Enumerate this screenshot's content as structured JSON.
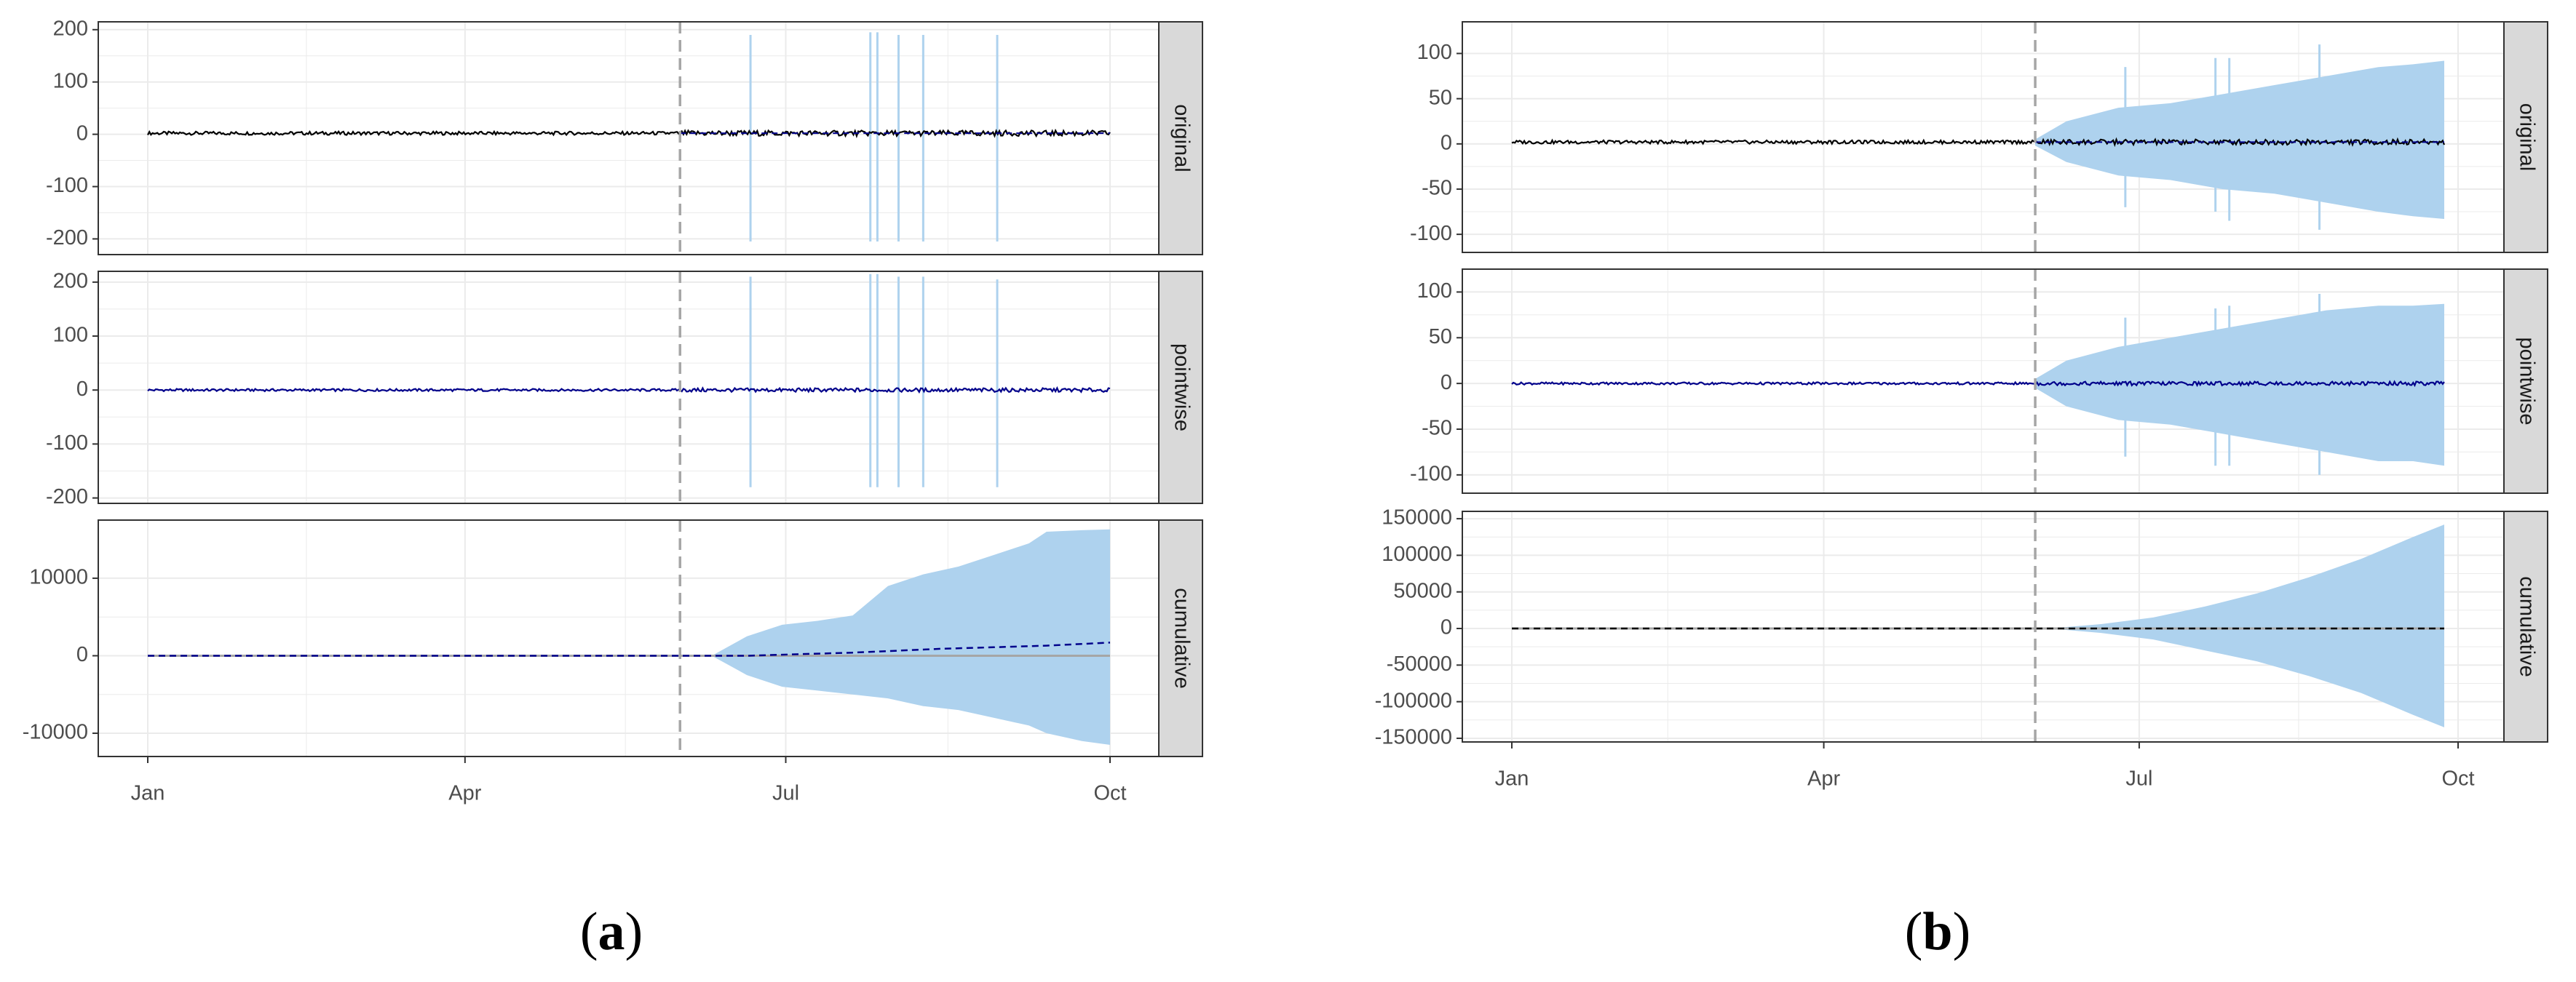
{
  "colors": {
    "interval": "#aed2ee",
    "observed": "#000000",
    "predicted": "#00008b",
    "intervention_line": "#a6a6a6",
    "zero_line": "#a6a6a6",
    "grid": "#ebebeb",
    "strip_fill": "#d9d9d9",
    "panel_border": "#333333"
  },
  "x_axis": {
    "ticks": [
      {
        "label": "Jan",
        "day": 0
      },
      {
        "label": "Apr",
        "day": 90
      },
      {
        "label": "Jul",
        "day": 181
      },
      {
        "label": "Oct",
        "day": 273
      }
    ],
    "xlim_days": [
      0,
      273
    ],
    "intervention_day": 151
  },
  "chart_data": [
    {
      "type": "line",
      "figure_label": {
        "open": "(",
        "letter": "a",
        "close": ")"
      },
      "facets": [
        {
          "strip": "original",
          "ylim": [
            -230,
            215
          ],
          "yticks": [
            200,
            100,
            0,
            -100,
            -200
          ],
          "ytick_labels": [
            "200",
            "100",
            "0",
            "-100",
            "-200"
          ],
          "series": {
            "observed_level": 2,
            "prediction_level": 2
          },
          "interval_spikes": [
            {
              "day": 171,
              "lo": -205,
              "hi": 190
            },
            {
              "day": 205,
              "lo": -205,
              "hi": 195
            },
            {
              "day": 207,
              "lo": -205,
              "hi": 195
            },
            {
              "day": 213,
              "lo": -205,
              "hi": 190
            },
            {
              "day": 220,
              "lo": -205,
              "hi": 190
            },
            {
              "day": 241,
              "lo": -205,
              "hi": 190
            }
          ],
          "interval_band": []
        },
        {
          "strip": "pointwise",
          "ylim": [
            -210,
            220
          ],
          "yticks": [
            200,
            100,
            0,
            -100,
            -200
          ],
          "ytick_labels": [
            "200",
            "100",
            "0",
            "-100",
            "-200"
          ],
          "series": {
            "observed_level": 0,
            "prediction_level": 0
          },
          "interval_spikes": [
            {
              "day": 171,
              "lo": -180,
              "hi": 210
            },
            {
              "day": 205,
              "lo": -180,
              "hi": 215
            },
            {
              "day": 207,
              "lo": -180,
              "hi": 215
            },
            {
              "day": 213,
              "lo": -180,
              "hi": 210
            },
            {
              "day": 220,
              "lo": -180,
              "hi": 210
            },
            {
              "day": 241,
              "lo": -180,
              "hi": 205
            }
          ],
          "interval_band": []
        },
        {
          "strip": "cumulative",
          "ylim": [
            -13000,
            17500
          ],
          "yticks": [
            10000,
            0,
            -10000
          ],
          "ytick_labels": [
            "10000",
            "0",
            "-10000"
          ],
          "series": {
            "predicted_curve": [
              [
                0,
                0
              ],
              [
                151,
                0
              ],
              [
                170,
                0
              ],
              [
                185,
                200
              ],
              [
                200,
                400
              ],
              [
                210,
                600
              ],
              [
                225,
                900
              ],
              [
                240,
                1100
              ],
              [
                255,
                1300
              ],
              [
                273,
                1700
              ]
            ]
          },
          "interval_band": [
            [
              160,
              0,
              0
            ],
            [
              170,
              2500,
              -2500
            ],
            [
              180,
              4000,
              -4000
            ],
            [
              190,
              4500,
              -4500
            ],
            [
              200,
              5200,
              -5000
            ],
            [
              210,
              9000,
              -5500
            ],
            [
              220,
              10500,
              -6500
            ],
            [
              230,
              11500,
              -7000
            ],
            [
              240,
              13000,
              -8000
            ],
            [
              250,
              14500,
              -9000
            ],
            [
              255,
              16000,
              -10000
            ],
            [
              265,
              16200,
              -11000
            ],
            [
              273,
              16300,
              -11500
            ]
          ],
          "interval_spikes": []
        }
      ]
    },
    {
      "type": "line",
      "figure_label": {
        "open": "(",
        "letter": "b",
        "close": ")"
      },
      "facets": [
        {
          "strip": "original",
          "ylim": [
            -120,
            135
          ],
          "yticks": [
            100,
            50,
            0,
            -50,
            -100
          ],
          "ytick_labels": [
            "100",
            "50",
            "0",
            "-50",
            "-100"
          ],
          "series": {
            "observed_level": 2,
            "prediction_level": 2
          },
          "interval_band": [
            [
              151,
              5,
              -2
            ],
            [
              160,
              25,
              -20
            ],
            [
              175,
              40,
              -35
            ],
            [
              190,
              45,
              -40
            ],
            [
              205,
              55,
              -50
            ],
            [
              220,
              65,
              -55
            ],
            [
              235,
              75,
              -65
            ],
            [
              250,
              85,
              -75
            ],
            [
              260,
              88,
              -80
            ],
            [
              269,
              92,
              -83
            ]
          ],
          "interval_spikes": [
            {
              "day": 177,
              "lo": -70,
              "hi": 85
            },
            {
              "day": 203,
              "lo": -75,
              "hi": 95
            },
            {
              "day": 207,
              "lo": -85,
              "hi": 95
            },
            {
              "day": 233,
              "lo": -95,
              "hi": 110
            }
          ]
        },
        {
          "strip": "pointwise",
          "ylim": [
            -120,
            125
          ],
          "yticks": [
            100,
            50,
            0,
            -50,
            -100
          ],
          "ytick_labels": [
            "100",
            "50",
            "0",
            "-50",
            "-100"
          ],
          "series": {
            "observed_level": 0,
            "prediction_level": 0
          },
          "interval_band": [
            [
              151,
              5,
              -5
            ],
            [
              160,
              25,
              -25
            ],
            [
              175,
              40,
              -40
            ],
            [
              190,
              50,
              -45
            ],
            [
              205,
              60,
              -55
            ],
            [
              220,
              70,
              -65
            ],
            [
              235,
              80,
              -75
            ],
            [
              250,
              85,
              -85
            ],
            [
              260,
              85,
              -85
            ],
            [
              269,
              87,
              -90
            ]
          ],
          "interval_spikes": [
            {
              "day": 177,
              "lo": -80,
              "hi": 72
            },
            {
              "day": 203,
              "lo": -90,
              "hi": 82
            },
            {
              "day": 207,
              "lo": -90,
              "hi": 85
            },
            {
              "day": 233,
              "lo": -100,
              "hi": 98
            }
          ]
        },
        {
          "strip": "cumulative",
          "ylim": [
            -155000,
            160000
          ],
          "yticks": [
            150000,
            100000,
            50000,
            0,
            -50000,
            -100000,
            -150000
          ],
          "ytick_labels": [
            "150000",
            "100000",
            "50000",
            "0",
            "-50000",
            "-100000",
            "-150000"
          ],
          "series": {
            "predicted_curve": [
              [
                0,
                0
              ],
              [
                269,
                0
              ]
            ]
          },
          "interval_band": [
            [
              155,
              0,
              0
            ],
            [
              170,
              6000,
              -6000
            ],
            [
              185,
              15000,
              -15000
            ],
            [
              200,
              30000,
              -30000
            ],
            [
              215,
              48000,
              -45000
            ],
            [
              230,
              70000,
              -65000
            ],
            [
              245,
              95000,
              -88000
            ],
            [
              260,
              125000,
              -118000
            ],
            [
              269,
              142000,
              -135000
            ]
          ],
          "interval_spikes": []
        }
      ]
    }
  ]
}
